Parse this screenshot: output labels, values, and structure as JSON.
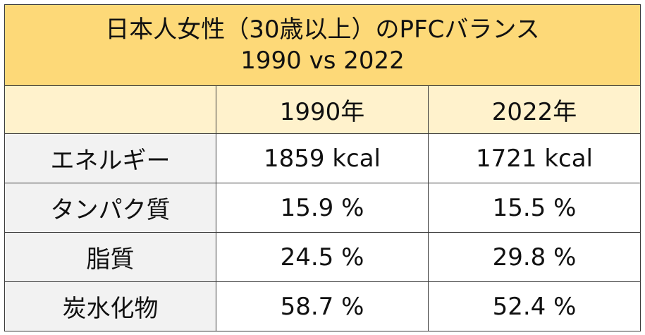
{
  "title": {
    "line1": "日本人女性（30歳以上）のPFCバランス",
    "line2": "1990 vs 2022"
  },
  "columns": [
    "",
    "1990年",
    "2022年"
  ],
  "rows": [
    {
      "label": "エネルギー",
      "v1990": "1859 kcal",
      "v2022": "1721 kcal"
    },
    {
      "label": "タンパク質",
      "v1990": "15.9 %",
      "v2022": "15.5 %"
    },
    {
      "label": "脂質",
      "v1990": "24.5 %",
      "v2022": "29.8 %"
    },
    {
      "label": "炭水化物",
      "v1990": "58.7 %",
      "v2022": "52.4 %"
    }
  ],
  "colors": {
    "title_bg": "#fdd978",
    "header_bg": "#fff2cc",
    "label_bg": "#f2f2f2",
    "border": "#3a3a3a"
  }
}
